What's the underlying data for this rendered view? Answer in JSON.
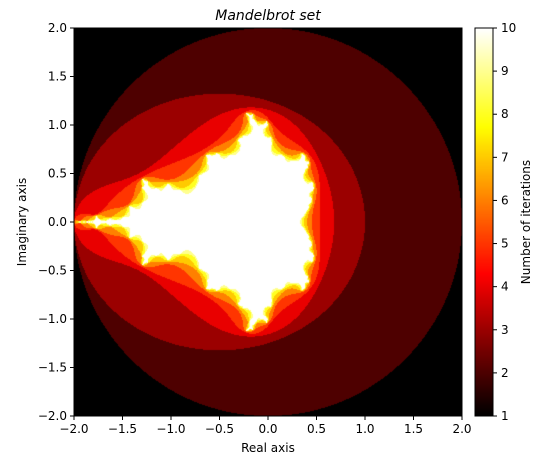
{
  "chart_data": {
    "type": "heatmap",
    "title": "Mandelbrot set",
    "xlabel": "Real axis",
    "ylabel": "Imaginary axis",
    "xlim": [
      -2.0,
      2.0
    ],
    "ylim": [
      -2.0,
      2.0
    ],
    "x_ticks": [
      "−2.0",
      "−1.5",
      "−1.0",
      "−0.5",
      "0.0",
      "0.5",
      "1.0",
      "1.5",
      "2.0"
    ],
    "y_ticks": [
      "2.0",
      "1.5",
      "1.0",
      "0.5",
      "0.0",
      "−0.5",
      "−1.0",
      "−1.5",
      "−2.0"
    ],
    "x_tick_values": [
      -2.0,
      -1.5,
      -1.0,
      -0.5,
      0.0,
      0.5,
      1.0,
      1.5,
      2.0
    ],
    "y_tick_values": [
      2.0,
      1.5,
      1.0,
      0.5,
      0.0,
      -0.5,
      -1.0,
      -1.5,
      -2.0
    ],
    "colorbar": {
      "label": "Number of iterations",
      "range": [
        1,
        10
      ],
      "ticks": [
        "1",
        "2",
        "3",
        "4",
        "5",
        "6",
        "7",
        "8",
        "9",
        "10"
      ],
      "tick_values": [
        1,
        2,
        3,
        4,
        5,
        6,
        7,
        8,
        9,
        10
      ],
      "colormap": "hot"
    },
    "max_iterations": 10,
    "grid": false
  }
}
